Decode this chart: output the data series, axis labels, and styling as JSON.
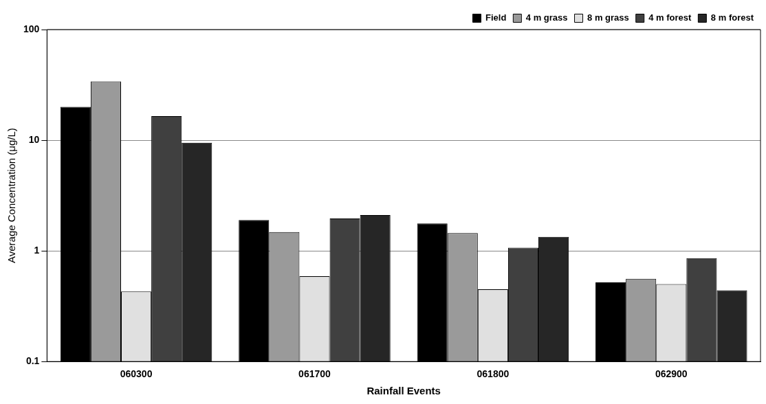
{
  "chart_data": {
    "type": "bar",
    "xlabel": "Rainfall Events",
    "ylabel": "Average Concentration (μg/L)",
    "categories": [
      "060300",
      "061700",
      "061800",
      "062900"
    ],
    "series": [
      {
        "name": "Field",
        "color": "#000000",
        "values": [
          20,
          1.9,
          1.77,
          0.52
        ]
      },
      {
        "name": "4 m grass",
        "color": "#9a9a9a",
        "values": [
          34,
          1.48,
          1.45,
          0.56
        ]
      },
      {
        "name": "8 m grass",
        "color": "#e0e0e0",
        "values": [
          0.43,
          0.59,
          0.45,
          0.5
        ]
      },
      {
        "name": "4 m forest",
        "color": "#404040",
        "values": [
          16.5,
          1.96,
          1.07,
          0.86
        ]
      },
      {
        "name": "8 m forest",
        "color": "#262626",
        "values": [
          9.5,
          2.11,
          1.34,
          0.44
        ]
      }
    ],
    "log": true,
    "ylim": [
      0.1,
      100
    ],
    "yticks": [
      0.1,
      1,
      10,
      100
    ],
    "grid": "y",
    "legend": "top right"
  }
}
